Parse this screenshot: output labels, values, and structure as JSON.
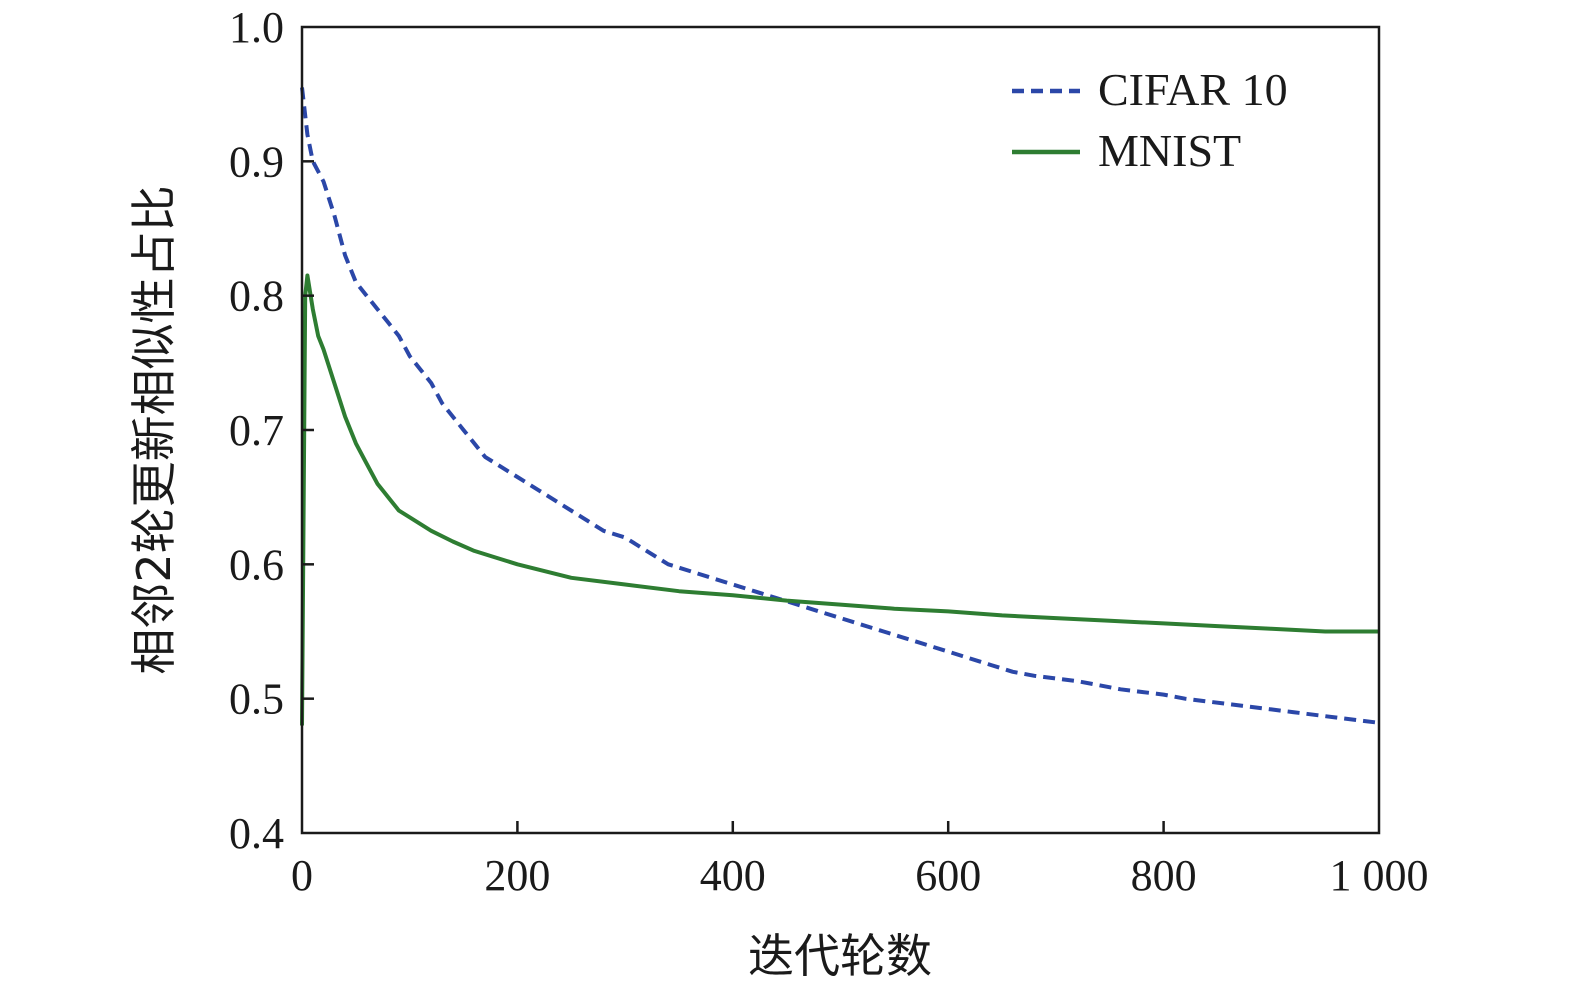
{
  "chart_data": {
    "type": "line",
    "xlabel": "迭代轮数",
    "ylabel": "相邻2轮更新相似性占比",
    "xlim": [
      0,
      1000
    ],
    "ylim": [
      0.4,
      1.0
    ],
    "xticks": [
      0,
      200,
      400,
      600,
      800,
      1000
    ],
    "xtick_labels": [
      "0",
      "200",
      "400",
      "600",
      "800",
      "1 000"
    ],
    "yticks": [
      0.4,
      0.5,
      0.6,
      0.7,
      0.8,
      0.9,
      1.0
    ],
    "ytick_labels": [
      "0.4",
      "0.5",
      "0.6",
      "0.7",
      "0.8",
      "0.9",
      "1.0"
    ],
    "grid": false,
    "legend_position": "top-right",
    "series": [
      {
        "name": "CIFAR 10",
        "color": "#2b47a8",
        "style": "dashed",
        "x": [
          0,
          5,
          10,
          20,
          30,
          40,
          50,
          60,
          70,
          80,
          90,
          100,
          110,
          120,
          130,
          140,
          150,
          160,
          170,
          180,
          190,
          200,
          220,
          240,
          260,
          280,
          300,
          320,
          340,
          360,
          380,
          400,
          420,
          440,
          460,
          480,
          500,
          520,
          540,
          560,
          580,
          600,
          620,
          640,
          660,
          680,
          700,
          720,
          740,
          760,
          780,
          800,
          820,
          840,
          860,
          880,
          900,
          920,
          940,
          960,
          980,
          1000
        ],
        "values": [
          0.955,
          0.92,
          0.9,
          0.885,
          0.86,
          0.83,
          0.81,
          0.8,
          0.79,
          0.78,
          0.77,
          0.755,
          0.745,
          0.735,
          0.72,
          0.71,
          0.7,
          0.69,
          0.68,
          0.675,
          0.67,
          0.665,
          0.655,
          0.645,
          0.635,
          0.625,
          0.62,
          0.61,
          0.6,
          0.595,
          0.59,
          0.585,
          0.58,
          0.575,
          0.57,
          0.565,
          0.56,
          0.555,
          0.55,
          0.545,
          0.54,
          0.535,
          0.53,
          0.525,
          0.52,
          0.517,
          0.515,
          0.513,
          0.51,
          0.507,
          0.505,
          0.503,
          0.5,
          0.498,
          0.496,
          0.494,
          0.492,
          0.49,
          0.488,
          0.486,
          0.484,
          0.482
        ]
      },
      {
        "name": "MNIST",
        "color": "#2e7d32",
        "style": "solid",
        "x": [
          0,
          3,
          5,
          10,
          15,
          20,
          30,
          40,
          50,
          60,
          70,
          80,
          90,
          100,
          120,
          140,
          160,
          180,
          200,
          250,
          300,
          350,
          400,
          450,
          500,
          550,
          600,
          650,
          700,
          750,
          800,
          850,
          900,
          950,
          1000
        ],
        "values": [
          0.48,
          0.8,
          0.815,
          0.79,
          0.77,
          0.76,
          0.735,
          0.71,
          0.69,
          0.675,
          0.66,
          0.65,
          0.64,
          0.635,
          0.625,
          0.617,
          0.61,
          0.605,
          0.6,
          0.59,
          0.585,
          0.58,
          0.577,
          0.573,
          0.57,
          0.567,
          0.565,
          0.562,
          0.56,
          0.558,
          0.556,
          0.554,
          0.552,
          0.55,
          0.55
        ]
      }
    ]
  }
}
